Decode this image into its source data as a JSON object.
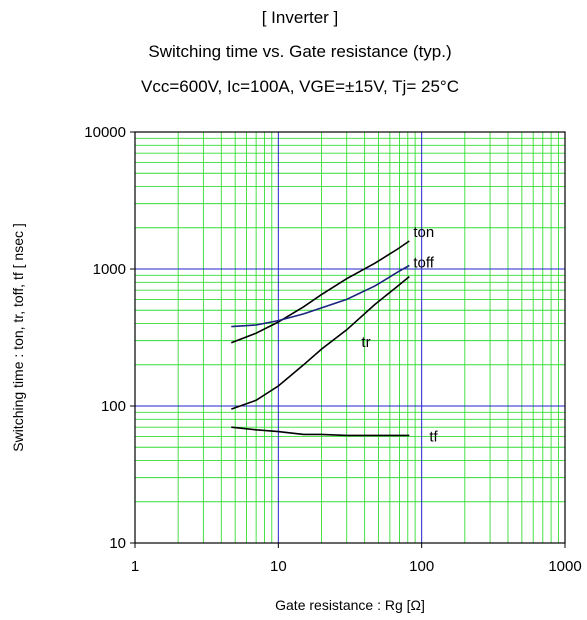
{
  "chart_data": {
    "type": "line",
    "title": "[ Inverter ]",
    "subtitle": "Switching time  vs.  Gate resistance  (typ.)",
    "conditions": "Vcc=600V, Ic=100A, VGE=±15V, Tj= 25°C",
    "xlabel": "Gate resistance : Rg [Ω]",
    "ylabel": "Switching time  :  ton, tr, toff, tf  [ nsec ]",
    "xscale": "log",
    "yscale": "log",
    "xlim": [
      1,
      1000
    ],
    "ylim": [
      10,
      10000
    ],
    "grid": true,
    "x_ticks": [
      "1",
      "10",
      "100",
      "1000"
    ],
    "y_ticks": [
      "10",
      "100",
      "1000",
      "10000"
    ],
    "colors": {
      "grid_minor": "#33dd33",
      "grid_major": "#2222cc",
      "ton": "#000000",
      "tr": "#000000",
      "toff": "#1a237e",
      "tf": "#000000"
    },
    "series": [
      {
        "name": "ton",
        "x": [
          4.7,
          7,
          10,
          15,
          20,
          30,
          47,
          68,
          82
        ],
        "y": [
          290,
          340,
          410,
          530,
          650,
          850,
          1100,
          1400,
          1600
        ]
      },
      {
        "name": "tr",
        "x": [
          4.7,
          7,
          10,
          15,
          20,
          30,
          47,
          68,
          82
        ],
        "y": [
          95,
          110,
          140,
          200,
          260,
          360,
          550,
          750,
          880
        ]
      },
      {
        "name": "toff",
        "x": [
          4.7,
          7,
          10,
          15,
          20,
          30,
          47,
          68,
          82
        ],
        "y": [
          380,
          390,
          420,
          470,
          520,
          600,
          750,
          950,
          1060
        ]
      },
      {
        "name": "tf",
        "x": [
          4.7,
          7,
          10,
          15,
          20,
          30,
          47,
          68,
          82
        ],
        "y": [
          70,
          67,
          65,
          62,
          62,
          61,
          61,
          61,
          61
        ]
      }
    ]
  }
}
